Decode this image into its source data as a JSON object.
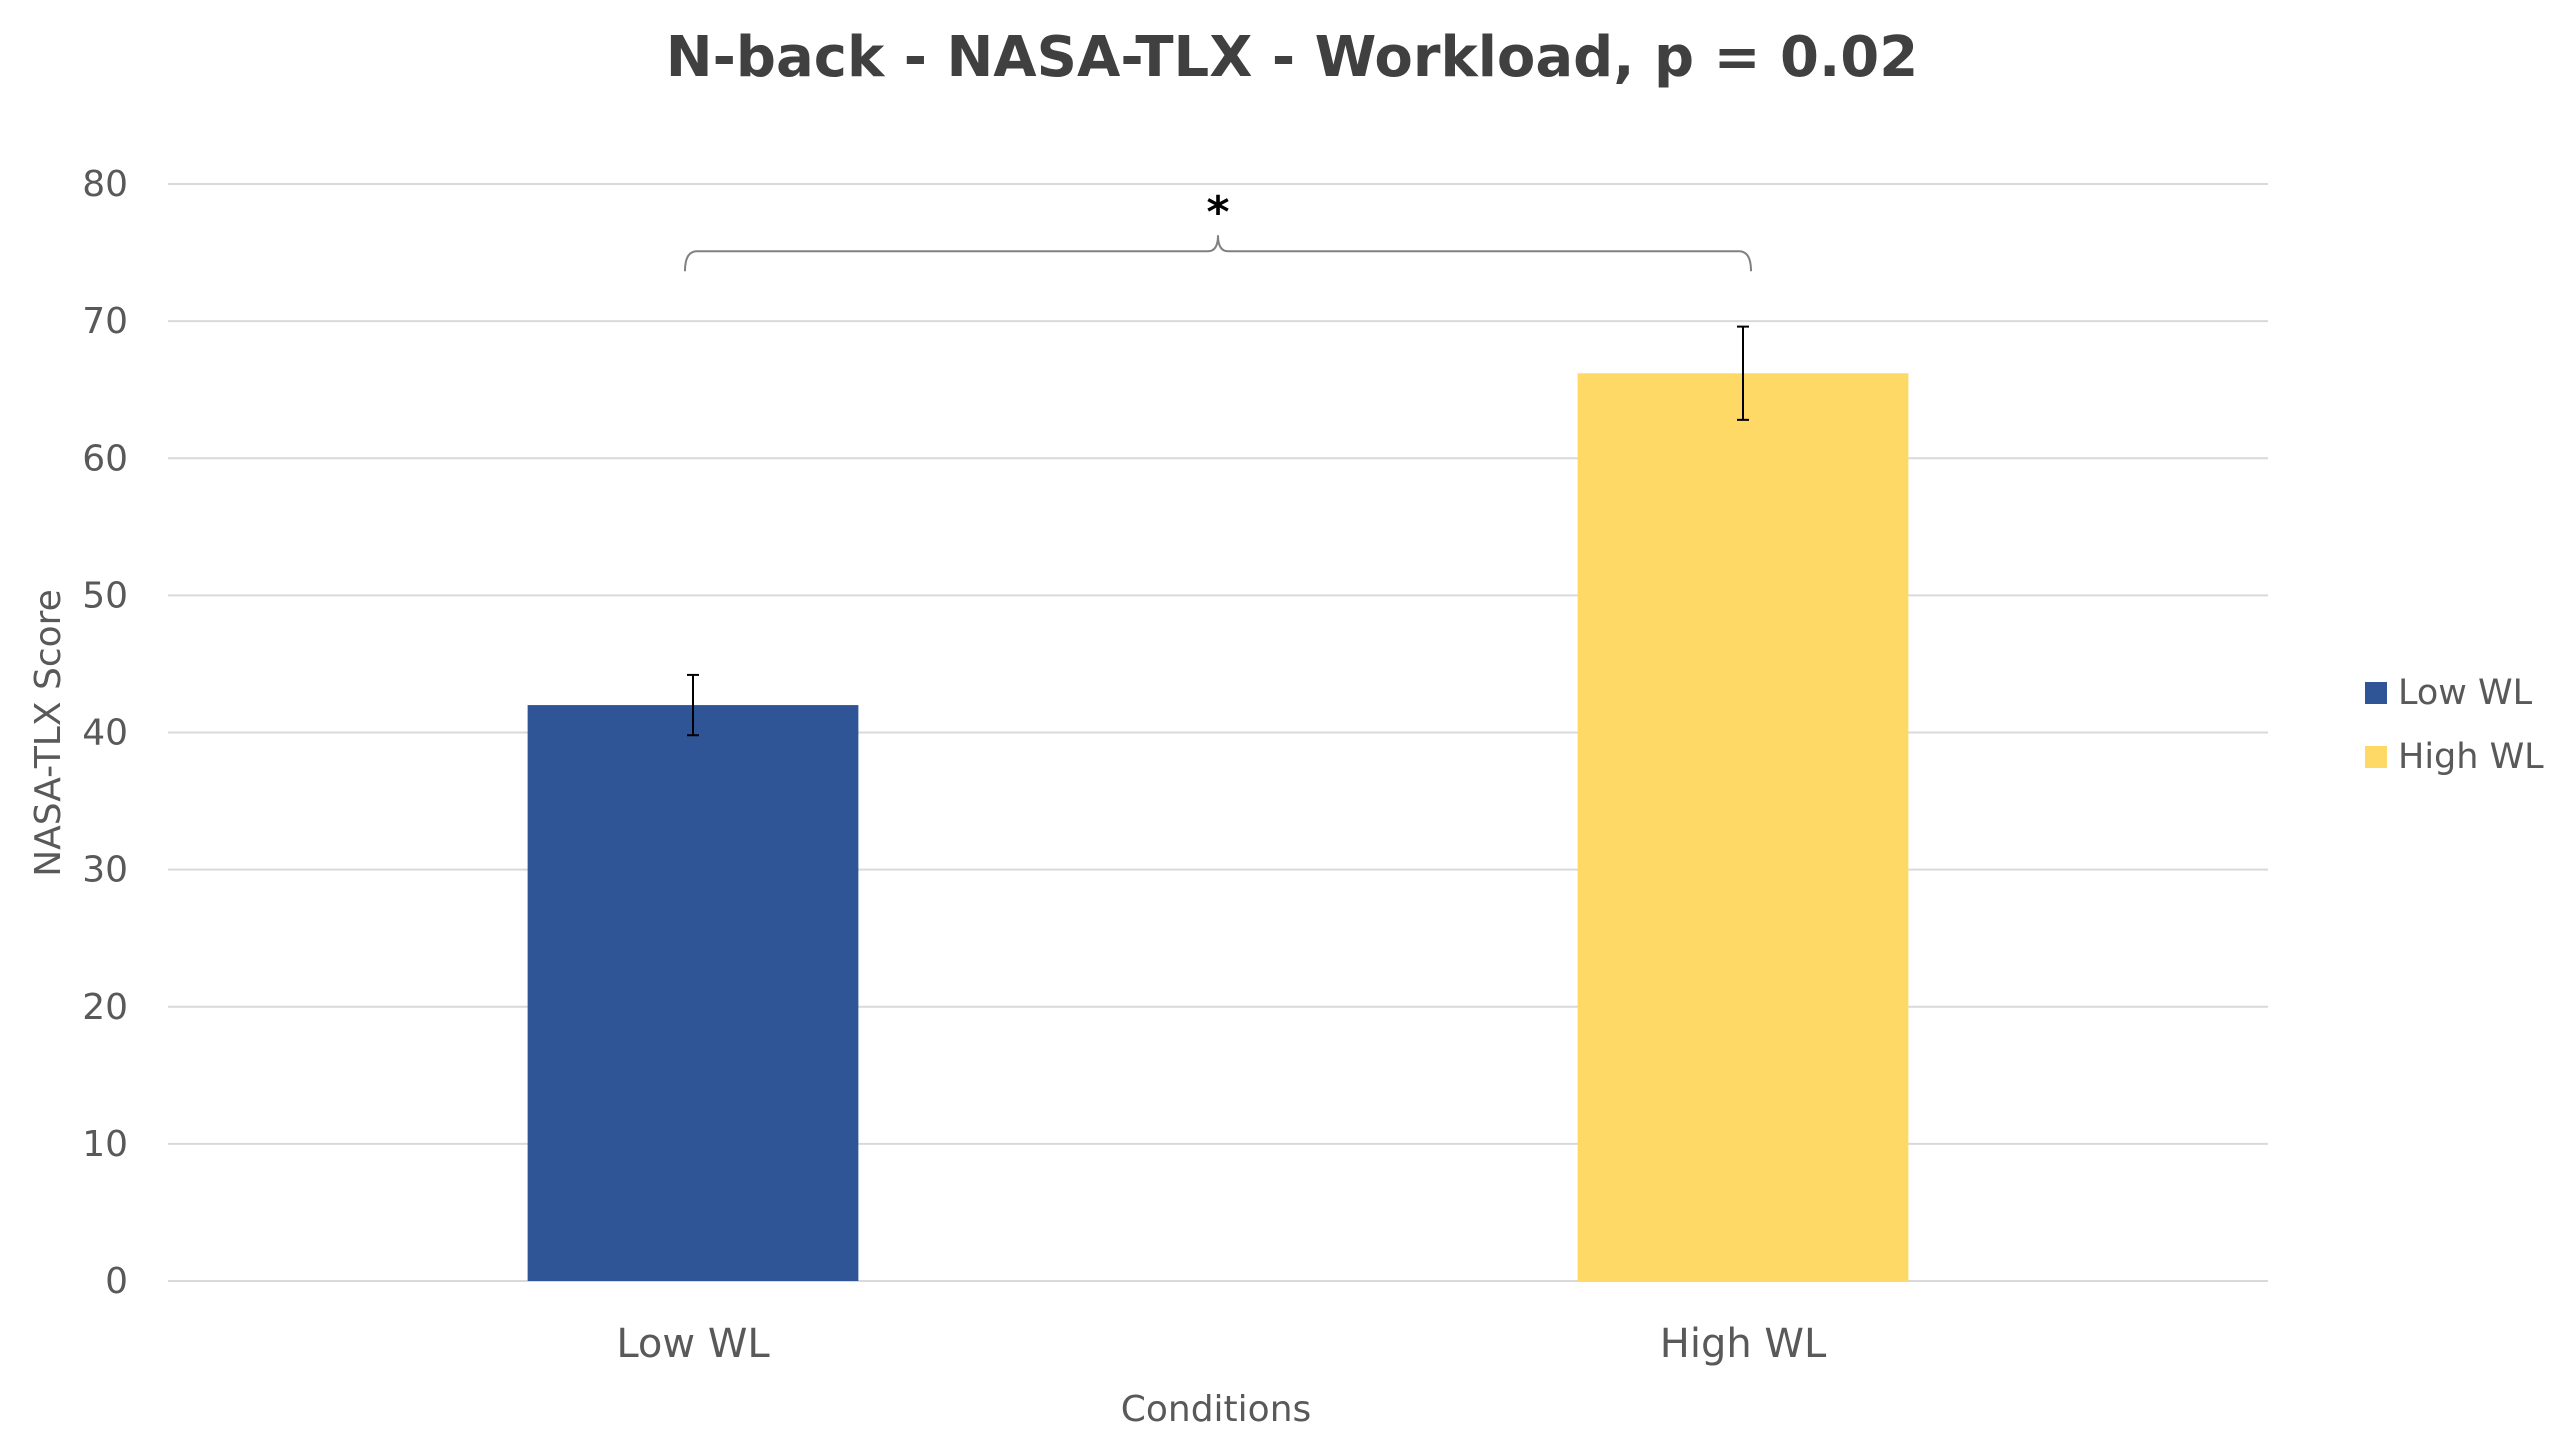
{
  "chart_data": {
    "type": "bar",
    "title": "N-back - NASA-TLX - Workload, p = 0.02",
    "xlabel": "Conditions",
    "ylabel": "NASA-TLX Score",
    "categories": [
      "Low WL",
      "High WL"
    ],
    "values": [
      42,
      66.2
    ],
    "error": [
      2.2,
      3.4
    ],
    "colors": [
      "#2f5597",
      "#ffd966"
    ],
    "ylim": [
      0,
      80
    ],
    "yticks": [
      0,
      10,
      20,
      30,
      40,
      50,
      60,
      70,
      80
    ],
    "ytick_labels": [
      "0",
      "10",
      "20",
      "30",
      "40",
      "50",
      "60",
      "70",
      "80"
    ],
    "grid": true,
    "legend": {
      "position": "right",
      "entries": [
        {
          "label": "Low WL",
          "color": "#2f5597"
        },
        {
          "label": "High WL",
          "color": "#ffd966"
        }
      ]
    },
    "annotations": [
      {
        "text": "*",
        "between": [
          "Low WL",
          "High WL"
        ],
        "type": "significance-bracket"
      }
    ]
  }
}
